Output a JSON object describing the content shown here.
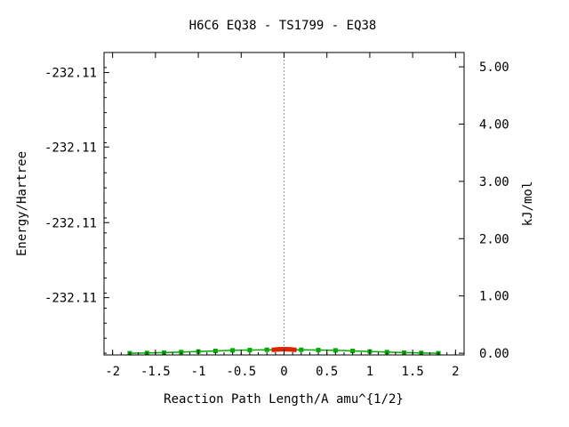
{
  "chart_data": {
    "type": "line",
    "title": "H6C6   EQ38 - TS1799 - EQ38",
    "xlabel": "Reaction Path Length/A amu^{1/2}",
    "ylabel": "Energy/Hartree",
    "y2label": "kJ/mol",
    "xlim": [
      -2.1,
      2.1
    ],
    "y2lim": [
      -0.03,
      5.25
    ],
    "x_ticks": [
      {
        "value": -2,
        "label": "-2"
      },
      {
        "value": -1.5,
        "label": "-1.5"
      },
      {
        "value": -1,
        "label": "-1"
      },
      {
        "value": -0.5,
        "label": "-0.5"
      },
      {
        "value": 0,
        "label": "0"
      },
      {
        "value": 0.5,
        "label": "0.5"
      },
      {
        "value": 1,
        "label": "1"
      },
      {
        "value": 1.5,
        "label": "1.5"
      },
      {
        "value": 2,
        "label": "2"
      }
    ],
    "y_left_ticks": [
      {
        "value": 4.9,
        "label": "-232.11"
      },
      {
        "value": 3.6,
        "label": "-232.11"
      },
      {
        "value": 2.28,
        "label": "-232.11"
      },
      {
        "value": 0.97,
        "label": "-232.11"
      }
    ],
    "y_right_ticks": [
      {
        "value": 5.0,
        "label": "5.00"
      },
      {
        "value": 4.0,
        "label": "4.00"
      },
      {
        "value": 3.0,
        "label": "3.00"
      },
      {
        "value": 2.0,
        "label": "2.00"
      },
      {
        "value": 1.0,
        "label": "1.00"
      },
      {
        "value": 0.0,
        "label": "0.00"
      }
    ],
    "ts_line_x": 0,
    "series": [
      {
        "color": "#00aa00",
        "x": [
          -1.8,
          -1.6,
          -1.4,
          -1.2,
          -1.0,
          -0.8,
          -0.6,
          -0.4,
          -0.2,
          0.2,
          0.4,
          0.6,
          0.8,
          1.0,
          1.2,
          1.4,
          1.6,
          1.8
        ],
        "y": [
          0.0,
          0.005,
          0.01,
          0.02,
          0.03,
          0.04,
          0.05,
          0.055,
          0.06,
          0.06,
          0.055,
          0.05,
          0.04,
          0.03,
          0.02,
          0.01,
          0.005,
          0.0
        ]
      },
      {
        "color": "#dd2200",
        "x": [
          -0.12,
          -0.09,
          -0.06,
          -0.03,
          0.0,
          0.03,
          0.06,
          0.09,
          0.12
        ],
        "y": [
          0.06,
          0.065,
          0.068,
          0.07,
          0.07,
          0.07,
          0.068,
          0.065,
          0.06
        ]
      }
    ]
  }
}
